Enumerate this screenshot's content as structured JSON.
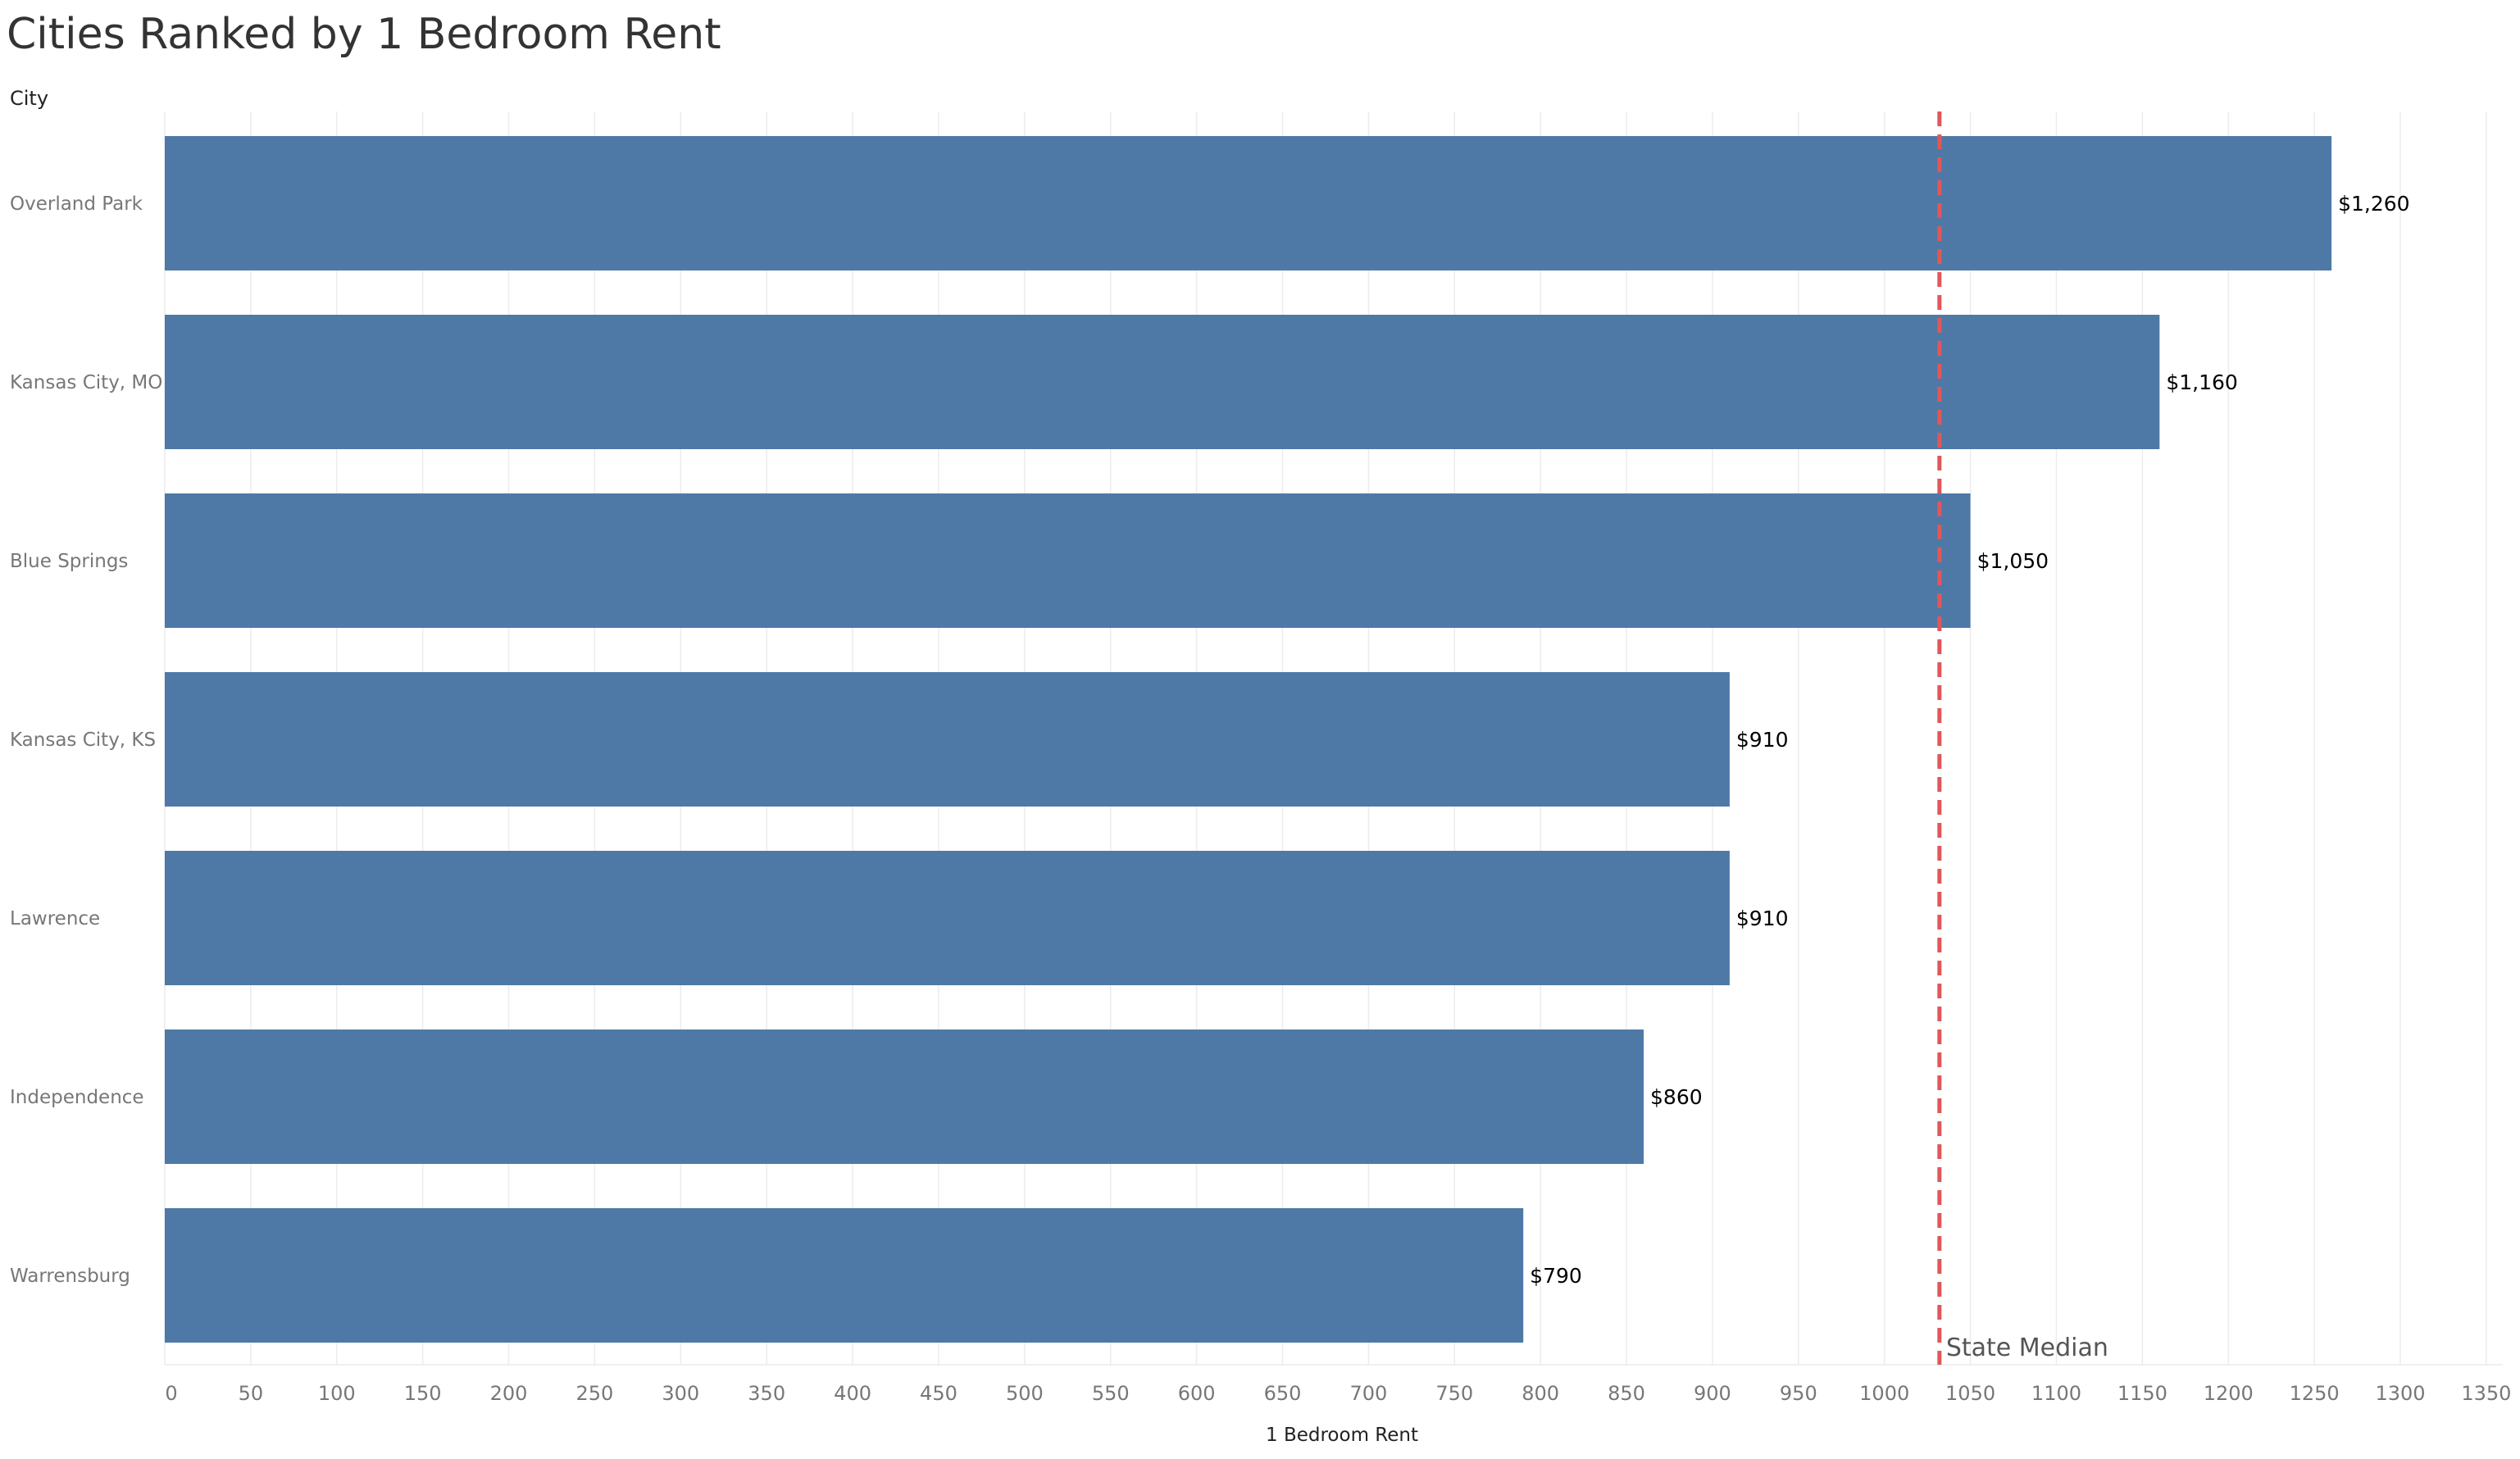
{
  "title": "Cities Ranked by 1 Bedroom Rent",
  "dimension_header": "City",
  "chart_data": {
    "type": "bar",
    "orientation": "horizontal",
    "title": "Cities Ranked by 1 Bedroom Rent",
    "ylabel": "City",
    "xlabel": "1 Bedroom Rent",
    "categories": [
      "Overland Park",
      "Kansas City, MO",
      "Blue Springs",
      "Kansas City, KS",
      "Lawrence",
      "Independence",
      "Warrensburg"
    ],
    "values": [
      1260,
      1160,
      1050,
      910,
      910,
      860,
      790
    ],
    "data_labels": [
      "$1,260",
      "$1,160",
      "$1,050",
      "$910",
      "$910",
      "$860",
      "$790"
    ],
    "xlim": [
      0,
      1350
    ],
    "xticks": [
      0,
      50,
      100,
      150,
      200,
      250,
      300,
      350,
      400,
      450,
      500,
      550,
      600,
      650,
      700,
      750,
      800,
      850,
      900,
      950,
      1000,
      1050,
      1100,
      1150,
      1200,
      1250,
      1300,
      1350
    ],
    "grid": true,
    "reference_line": {
      "label": "State Median",
      "value": 1032,
      "style": "dashed",
      "color": "#e15759"
    },
    "colors": {
      "bar": "#4e79a7",
      "grid": "#ececec"
    }
  }
}
